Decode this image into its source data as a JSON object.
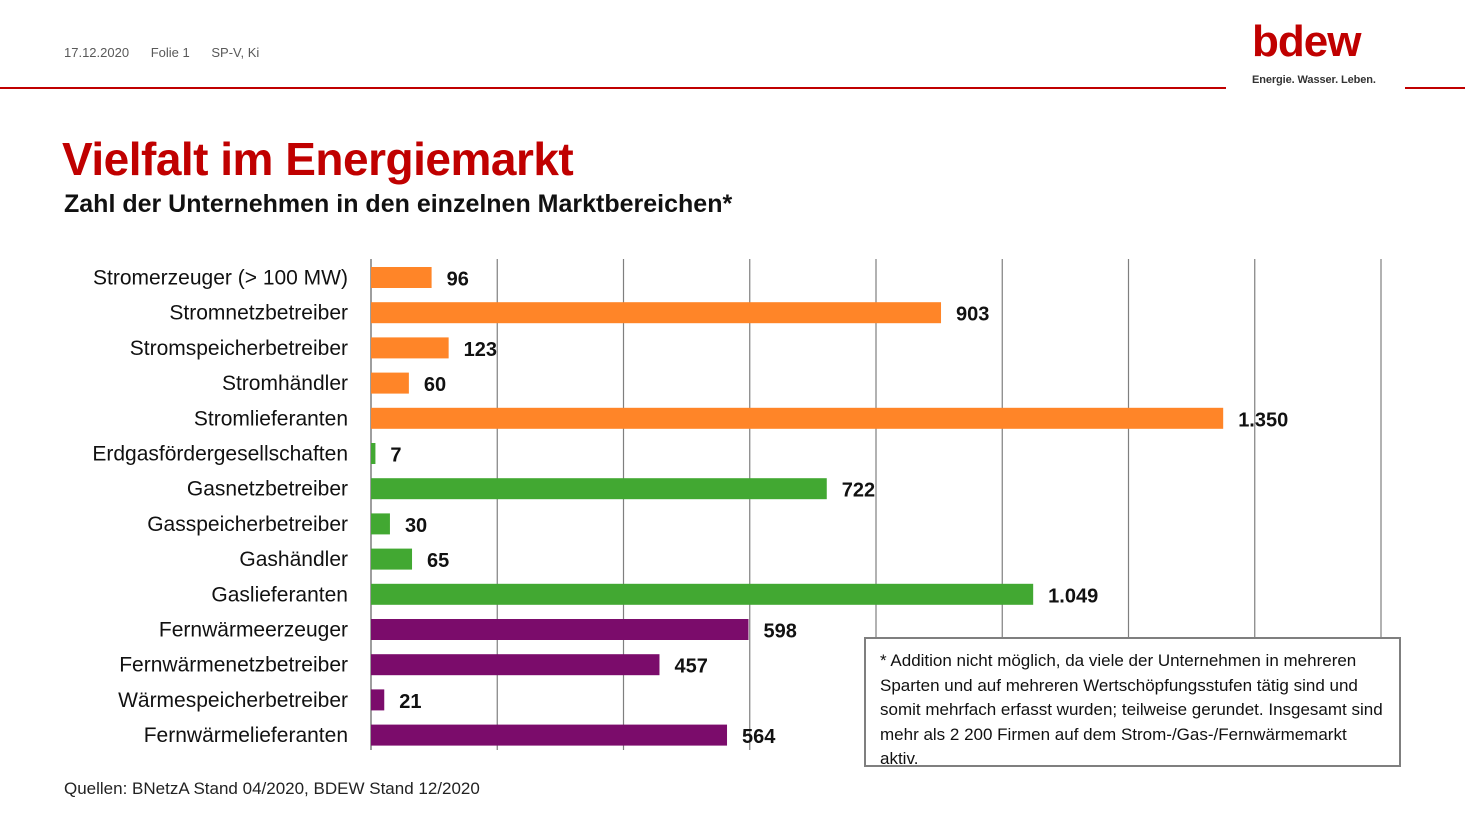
{
  "header": {
    "date": "17.12.2020",
    "slide": "Folie 1",
    "author": "SP-V, Ki"
  },
  "logo": {
    "word": "bdew",
    "tagline": "Energie. Wasser. Leben."
  },
  "title": "Vielfalt im Energiemarkt",
  "subtitle": "Zahl der Unternehmen in den einzelnen Marktbereichen*",
  "colors": {
    "brand_red": "#c00000",
    "strom_orange": "#ff8528",
    "gas_green": "#42a832",
    "fernwaerme_purple": "#7b0c6b",
    "grid": "#7f7f7f"
  },
  "chart_data": {
    "type": "bar",
    "orientation": "horizontal",
    "xlim": [
      0,
      1600
    ],
    "grid": true,
    "categories": [
      "Stromerzeuger (> 100 MW)",
      "Stromnetzbetreiber",
      "Stromspeicherbetreiber",
      "Stromhändler",
      "Stromlieferanten",
      "Erdgasfördergesellschaften",
      "Gasnetzbetreiber",
      "Gasspeicherbetreiber",
      "Gashändler",
      "Gaslieferanten",
      "Fernwärmeerzeuger",
      "Fernwärmenetzbetreiber",
      "Wärmespeicherbetreiber",
      "Fernwärmelieferanten"
    ],
    "values": [
      96,
      903,
      123,
      60,
      1350,
      7,
      722,
      30,
      65,
      1049,
      598,
      457,
      21,
      564
    ],
    "value_labels": [
      "96",
      "903",
      "123",
      "60",
      "1.350",
      "7",
      "722",
      "30",
      "65",
      "1.049",
      "598",
      "457",
      "21",
      "564"
    ],
    "bar_colors": [
      "#ff8528",
      "#ff8528",
      "#ff8528",
      "#ff8528",
      "#ff8528",
      "#42a832",
      "#42a832",
      "#42a832",
      "#42a832",
      "#42a832",
      "#7b0c6b",
      "#7b0c6b",
      "#7b0c6b",
      "#7b0c6b"
    ]
  },
  "note": "* Addition nicht möglich, da viele der Unternehmen in mehreren Sparten und auf mehreren Wertschöpfungsstufen tätig sind und somit mehrfach erfasst wurden; teilweise gerundet. Insgesamt sind mehr als 2 200 Firmen auf dem Strom-/Gas-/Fernwärmemarkt aktiv.",
  "source": "Quellen: BNetzA Stand 04/2020, BDEW Stand 12/2020"
}
